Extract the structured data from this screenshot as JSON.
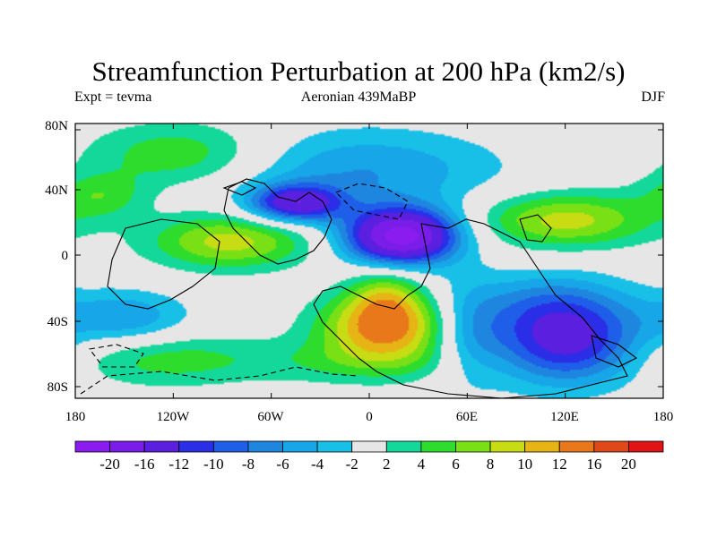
{
  "title": "Streamfunction Perturbation at 200 hPa (km2/s)",
  "subtitle_left": "Expt = tevma",
  "subtitle_center": "Aeronian 439MaBP",
  "subtitle_right": "DJF",
  "y_ticks": [
    "80N",
    "40N",
    "0",
    "40S",
    "80S"
  ],
  "x_ticks": [
    "180",
    "120W",
    "60W",
    "0",
    "60E",
    "120E",
    "180"
  ],
  "colorbar": {
    "labels": [
      "-20",
      "-16",
      "-12",
      "-10",
      "-8",
      "-6",
      "-4",
      "-2",
      "2",
      "4",
      "6",
      "8",
      "10",
      "12",
      "16",
      "20"
    ],
    "colors": [
      "#8a1cf0",
      "#7a1de8",
      "#5b1fe0",
      "#2a2ee6",
      "#1f5ee8",
      "#1f86e0",
      "#17a6e8",
      "#18c0e8",
      "#e6e6e6",
      "#14d89a",
      "#2edc2e",
      "#7ae016",
      "#c8dc14",
      "#e6b414",
      "#e8781a",
      "#e0481a",
      "#e01414"
    ]
  },
  "map": {
    "blobs": [
      {
        "lon": 20,
        "lat": 15,
        "amp": -22,
        "slon": 24,
        "slat": 12
      },
      {
        "lon": -45,
        "lat": 35,
        "amp": -14,
        "slon": 20,
        "slat": 8
      },
      {
        "lon": -5,
        "lat": 55,
        "amp": -6,
        "slon": 60,
        "slat": 18
      },
      {
        "lon": 120,
        "lat": -50,
        "amp": -13,
        "slon": 32,
        "slat": 18
      },
      {
        "lon": 110,
        "lat": -25,
        "amp": -5,
        "slon": 35,
        "slat": 14
      },
      {
        "lon": -150,
        "lat": -35,
        "amp": -6,
        "slon": 28,
        "slat": 12
      },
      {
        "lon": 60,
        "lat": -45,
        "amp": -5,
        "slon": 16,
        "slat": 22
      },
      {
        "lon": 10,
        "lat": -40,
        "amp": 13,
        "slon": 28,
        "slat": 14
      },
      {
        "lon": 10,
        "lat": -20,
        "amp": 6,
        "slon": 16,
        "slat": 12
      },
      {
        "lon": -85,
        "lat": 12,
        "amp": 9,
        "slon": 35,
        "slat": 12
      },
      {
        "lon": -115,
        "lat": 65,
        "amp": 6,
        "slon": 40,
        "slat": 14
      },
      {
        "lon": 120,
        "lat": 25,
        "amp": 9,
        "slon": 38,
        "slat": 12
      },
      {
        "lon": -165,
        "lat": 40,
        "amp": 5,
        "slon": 20,
        "slat": 10
      },
      {
        "lon": -125,
        "lat": -60,
        "amp": 5,
        "slon": 42,
        "slat": 12
      },
      {
        "lon": 0,
        "lat": -62,
        "amp": 4,
        "slon": 50,
        "slat": 10
      }
    ]
  }
}
